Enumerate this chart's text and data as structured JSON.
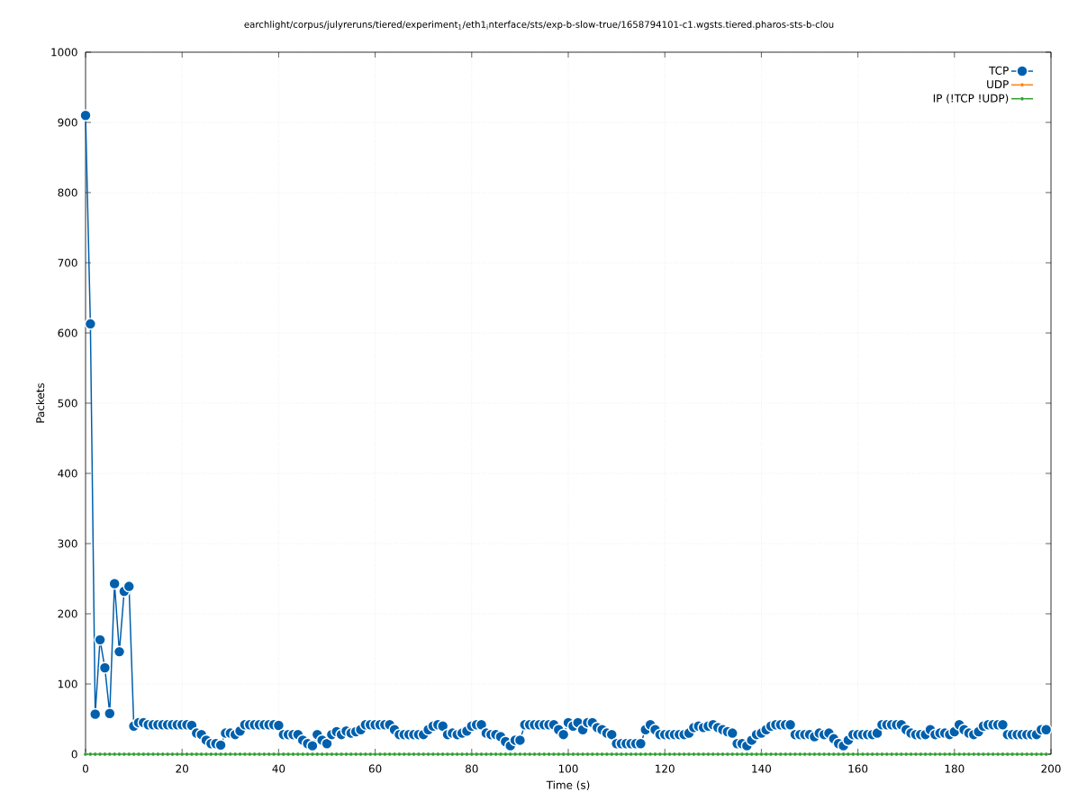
{
  "chart_data": {
    "type": "line",
    "title": "earchlight/corpus/julyreruns/tiered/experiment$_{1}$/eth1$_{i}$nterface/sts/exp-b-slow-true/1658794101-c1.wgsts.tiered.pharos-sts-b-clou",
    "xlabel": "Time (s)",
    "ylabel": "Packets",
    "x": [
      0,
      1,
      2,
      3,
      4,
      5,
      6,
      7,
      8,
      9,
      10,
      11,
      12,
      13,
      14,
      15,
      16,
      17,
      18,
      19,
      20,
      21,
      22,
      23,
      24,
      25,
      26,
      27,
      28,
      29,
      30,
      31,
      32,
      33,
      34,
      35,
      36,
      37,
      38,
      39,
      40,
      41,
      42,
      43,
      44,
      45,
      46,
      47,
      48,
      49,
      50,
      51,
      52,
      53,
      54,
      55,
      56,
      57,
      58,
      59,
      60,
      61,
      62,
      63,
      64,
      65,
      66,
      67,
      68,
      69,
      70,
      71,
      72,
      73,
      74,
      75,
      76,
      77,
      78,
      79,
      80,
      81,
      82,
      83,
      84,
      85,
      86,
      87,
      88,
      89,
      90,
      91,
      92,
      93,
      94,
      95,
      96,
      97,
      98,
      99,
      100,
      101,
      102,
      103,
      104,
      105,
      106,
      107,
      108,
      109,
      110,
      111,
      112,
      113,
      114,
      115,
      116,
      117,
      118,
      119,
      120,
      121,
      122,
      123,
      124,
      125,
      126,
      127,
      128,
      129,
      130,
      131,
      132,
      133,
      134,
      135,
      136,
      137,
      138,
      139,
      140,
      141,
      142,
      143,
      144,
      145,
      146,
      147,
      148,
      149,
      150,
      151,
      152,
      153,
      154,
      155,
      156,
      157,
      158,
      159,
      160,
      161,
      162,
      163,
      164,
      165,
      166,
      167,
      168,
      169,
      170,
      171,
      172,
      173,
      174,
      175,
      176,
      177,
      178,
      179,
      180,
      181,
      182,
      183,
      184,
      185,
      186,
      187,
      188,
      189,
      190,
      191,
      192,
      193,
      194,
      195,
      196,
      197,
      198,
      199
    ],
    "series": [
      {
        "name": "TCP",
        "color": "#0060ad",
        "values": [
          910,
          613,
          57,
          163,
          123,
          58,
          243,
          146,
          232,
          239,
          40,
          45,
          45,
          42,
          42,
          42,
          42,
          42,
          42,
          42,
          42,
          42,
          41,
          30,
          28,
          20,
          15,
          15,
          13,
          30,
          30,
          28,
          33,
          42,
          42,
          42,
          42,
          42,
          42,
          42,
          41,
          28,
          28,
          28,
          28,
          20,
          15,
          12,
          28,
          20,
          15,
          28,
          32,
          28,
          33,
          30,
          32,
          35,
          42,
          42,
          42,
          42,
          42,
          42,
          35,
          28,
          28,
          28,
          28,
          28,
          28,
          35,
          40,
          42,
          40,
          28,
          30,
          28,
          30,
          33,
          40,
          42,
          42,
          30,
          28,
          28,
          25,
          18,
          12,
          20,
          20,
          42,
          42,
          42,
          42,
          42,
          42,
          42,
          35,
          28,
          45,
          40,
          45,
          35,
          45,
          45,
          38,
          35,
          30,
          28,
          15,
          15,
          15,
          15,
          15,
          15,
          35,
          42,
          35,
          28,
          28,
          28,
          28,
          28,
          28,
          30,
          38,
          40,
          38,
          40,
          42,
          38,
          35,
          32,
          30,
          15,
          15,
          12,
          20,
          28,
          30,
          35,
          40,
          42,
          42,
          42,
          42,
          28,
          28,
          28,
          28,
          25,
          30,
          28,
          30,
          22,
          15,
          12,
          20,
          28,
          28,
          28,
          28,
          28,
          30,
          42,
          42,
          42,
          42,
          42,
          35,
          30,
          28,
          28,
          28,
          35,
          28,
          30,
          30,
          28,
          32,
          42,
          35,
          30,
          28,
          32,
          40,
          42,
          42,
          42,
          42,
          28,
          28,
          28,
          28,
          28,
          28,
          28,
          35,
          35
        ]
      },
      {
        "name": "UDP",
        "color": "#ff7f0e",
        "values": [
          null,
          null,
          null,
          null,
          null,
          null,
          null,
          null,
          null,
          null,
          null,
          null,
          null,
          null,
          null,
          null,
          null,
          null,
          null,
          null,
          null,
          null,
          null,
          null,
          null,
          null,
          null,
          null,
          null,
          null,
          null,
          null,
          null,
          null,
          null,
          null,
          null,
          null,
          null,
          null,
          null,
          null,
          null,
          null,
          null,
          null,
          null,
          null,
          null,
          null,
          null,
          null,
          null,
          null,
          null,
          null,
          null,
          null,
          null,
          null,
          null,
          null,
          null,
          null,
          null,
          null,
          null,
          null,
          null,
          null,
          null,
          null,
          null,
          null,
          null,
          null,
          null,
          null,
          null,
          null,
          null,
          null,
          null,
          null,
          null,
          null,
          null,
          null,
          null,
          null,
          null,
          null,
          null,
          null,
          null,
          null,
          null,
          null,
          null,
          null,
          null,
          null,
          null,
          null,
          null,
          null,
          null,
          null,
          null,
          null,
          null,
          null,
          null,
          null,
          null,
          null,
          null,
          null,
          null,
          null,
          null,
          null,
          null,
          null,
          null,
          null,
          null,
          null,
          null,
          null,
          null,
          null,
          null,
          null,
          null,
          null,
          null,
          null,
          null,
          null,
          null,
          null,
          null,
          null,
          null,
          null,
          null,
          null,
          null,
          null,
          null,
          null,
          null,
          null,
          null,
          null,
          null,
          null,
          null,
          null,
          null,
          null,
          null,
          null,
          null,
          null,
          null,
          null,
          null,
          null,
          null,
          null,
          null,
          null,
          null,
          null,
          null,
          null,
          null,
          null,
          null,
          null,
          null,
          null,
          null,
          null,
          null,
          null,
          null,
          null,
          null,
          null,
          null,
          null,
          null,
          null,
          null,
          null,
          null,
          null
        ]
      },
      {
        "name": "IP (!TCP  !UDP)",
        "color": "#2ca02c",
        "values": [
          0,
          0,
          0,
          0,
          0,
          0,
          0,
          0,
          0,
          0,
          0,
          0,
          0,
          0,
          0,
          0,
          0,
          0,
          0,
          0,
          0,
          0,
          0,
          0,
          0,
          0,
          0,
          0,
          0,
          0,
          0,
          0,
          0,
          0,
          0,
          0,
          0,
          0,
          0,
          0,
          0,
          0,
          0,
          0,
          0,
          0,
          0,
          0,
          0,
          0,
          0,
          0,
          0,
          0,
          0,
          0,
          0,
          0,
          0,
          0,
          0,
          0,
          0,
          0,
          0,
          0,
          0,
          0,
          0,
          0,
          0,
          0,
          0,
          0,
          0,
          0,
          0,
          0,
          0,
          0,
          0,
          0,
          0,
          0,
          0,
          0,
          0,
          0,
          0,
          0,
          0,
          0,
          0,
          0,
          0,
          0,
          0,
          0,
          0,
          0,
          0,
          0,
          0,
          0,
          0,
          0,
          0,
          0,
          0,
          0,
          0,
          0,
          0,
          0,
          0,
          0,
          0,
          0,
          0,
          0,
          0,
          0,
          0,
          0,
          0,
          0,
          0,
          0,
          0,
          0,
          0,
          0,
          0,
          0,
          0,
          0,
          0,
          0,
          0,
          0,
          0,
          0,
          0,
          0,
          0,
          0,
          0,
          0,
          0,
          0,
          0,
          0,
          0,
          0,
          0,
          0,
          0,
          0,
          0,
          0,
          0,
          0,
          0,
          0,
          0,
          0,
          0,
          0,
          0,
          0,
          0,
          0,
          0,
          0,
          0,
          0,
          0,
          0,
          0,
          0,
          0,
          0,
          0,
          0,
          0,
          0,
          0,
          0,
          0,
          0,
          0,
          0,
          0,
          0,
          0,
          0,
          0,
          0,
          0,
          0
        ]
      }
    ],
    "xlim": [
      0,
      200
    ],
    "ylim": [
      0,
      1000
    ],
    "xticks": [
      0,
      20,
      40,
      60,
      80,
      100,
      120,
      140,
      160,
      180,
      200
    ],
    "yticks": [
      0,
      100,
      200,
      300,
      400,
      500,
      600,
      700,
      800,
      900,
      1000
    ],
    "grid": true,
    "legend": "top right",
    "marker": "circle",
    "line_style": "solid"
  }
}
